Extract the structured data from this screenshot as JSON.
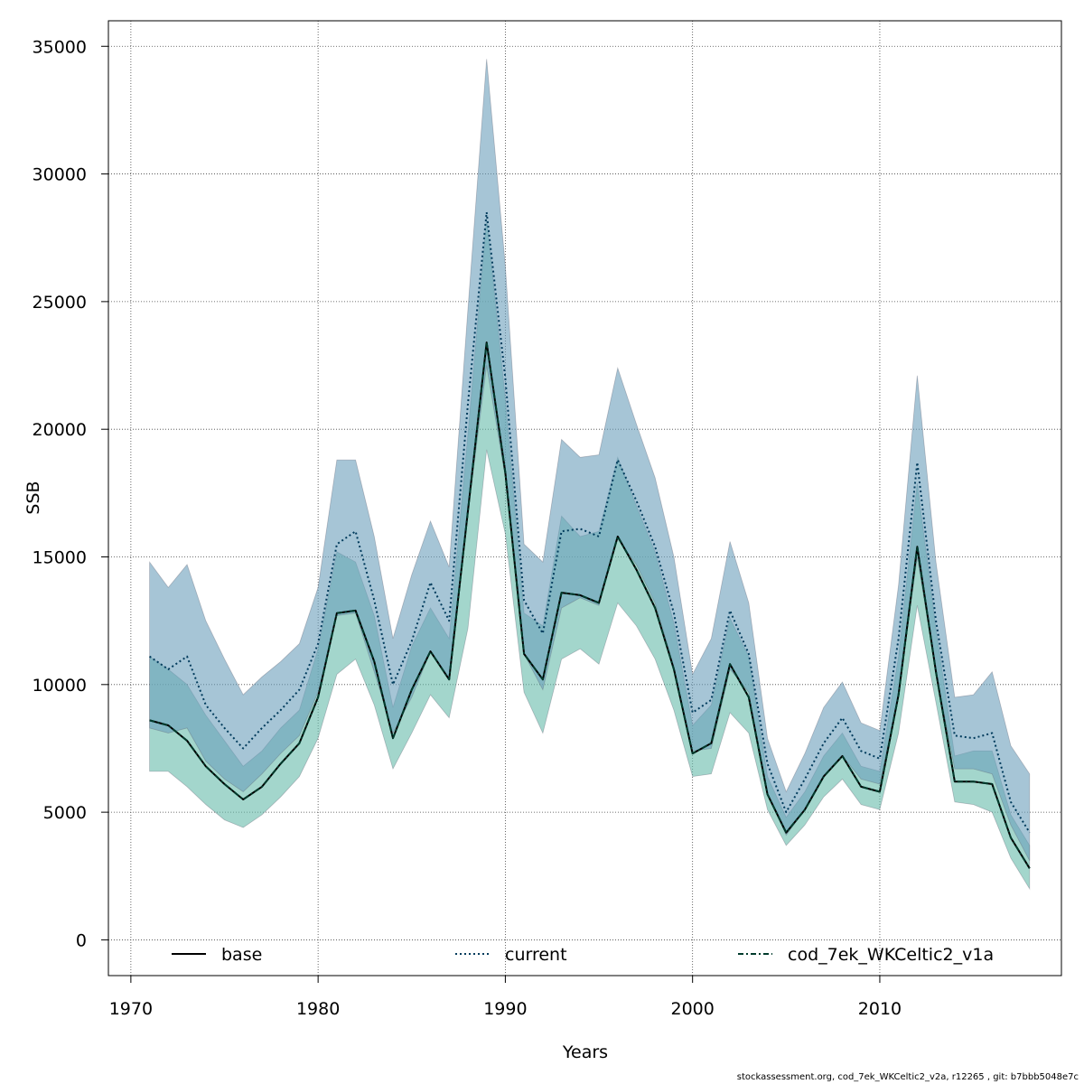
{
  "chart_data": {
    "type": "area",
    "xlabel": "Years",
    "ylabel": "SSB",
    "xlim": [
      1968.8,
      2019.7
    ],
    "ylim": [
      -1400,
      36000
    ],
    "x_ticks": [
      1970,
      1980,
      1990,
      2000,
      2010
    ],
    "y_ticks": [
      0,
      5000,
      10000,
      15000,
      20000,
      25000,
      30000,
      35000
    ],
    "grid": true,
    "legend_position": "bottom",
    "years": [
      1971,
      1972,
      1973,
      1974,
      1975,
      1976,
      1977,
      1978,
      1979,
      1980,
      1981,
      1982,
      1983,
      1984,
      1985,
      1986,
      1987,
      1988,
      1989,
      1990,
      1991,
      1992,
      1993,
      1994,
      1995,
      1996,
      1997,
      1998,
      1999,
      2000,
      2001,
      2002,
      2003,
      2004,
      2005,
      2006,
      2007,
      2008,
      2009,
      2010,
      2011,
      2012,
      2013,
      2014,
      2015,
      2016,
      2017,
      2018
    ],
    "series": [
      {
        "name": "base",
        "color": "#000000",
        "dash": "solid",
        "values": [
          8600,
          8400,
          7800,
          6800,
          6100,
          5500,
          6000,
          6900,
          7700,
          9500,
          12800,
          12900,
          10900,
          7900,
          9800,
          11300,
          10200,
          16800,
          23400,
          18300,
          11200,
          10200,
          13600,
          13500,
          13200,
          15800,
          14500,
          13000,
          10600,
          7300,
          7700,
          10800,
          9500,
          5700,
          4200,
          5100,
          6400,
          7200,
          6000,
          5800,
          9600,
          15400,
          10500,
          6200,
          6200,
          6100,
          4000,
          2800
        ],
        "band_lower": [
          6600,
          6600,
          6000,
          5300,
          4700,
          4400,
          4900,
          5600,
          6400,
          7900,
          10400,
          11000,
          9200,
          6700,
          8100,
          9600,
          8700,
          12200,
          19200,
          15900,
          9700,
          8100,
          11000,
          11400,
          10800,
          13200,
          12300,
          11000,
          9000,
          6400,
          6500,
          8900,
          8100,
          5100,
          3700,
          4500,
          5600,
          6300,
          5300,
          5100,
          8100,
          13100,
          9300,
          5400,
          5300,
          5000,
          3200,
          2000
        ],
        "band_upper": [
          11100,
          10600,
          10000,
          8800,
          7800,
          6800,
          7400,
          8300,
          9000,
          11400,
          15200,
          14800,
          12700,
          9100,
          11500,
          13000,
          11800,
          19800,
          28300,
          21200,
          12800,
          12300,
          16600,
          15800,
          16000,
          18900,
          17000,
          15200,
          12400,
          8400,
          9200,
          12600,
          11100,
          6400,
          4800,
          5800,
          7200,
          8100,
          6800,
          6600,
          11100,
          17900,
          12200,
          7200,
          7400,
          7400,
          4900,
          3700
        ],
        "band_color": "#66bbaa",
        "band_opacity": 0.6
      },
      {
        "name": "current",
        "color": "#003b5c",
        "dash": "dotted",
        "values": [
          11100,
          10600,
          11100,
          9200,
          8300,
          7500,
          8300,
          9000,
          9800,
          11600,
          15500,
          16000,
          13300,
          10000,
          11700,
          14000,
          12500,
          21000,
          28500,
          22000,
          13300,
          12000,
          16000,
          16100,
          15800,
          18800,
          17200,
          15400,
          12800,
          8900,
          9400,
          12900,
          11200,
          6900,
          5000,
          6300,
          7700,
          8700,
          7400,
          7100,
          11800,
          18700,
          12500,
          8000,
          7900,
          8100,
          5400,
          4200
        ],
        "band_lower": [
          8300,
          8100,
          8300,
          7000,
          6300,
          5800,
          6500,
          7300,
          8000,
          9700,
          12700,
          12800,
          10500,
          8100,
          9500,
          11300,
          10200,
          16700,
          22500,
          18100,
          11200,
          9800,
          13000,
          13400,
          13100,
          15700,
          14700,
          13200,
          10700,
          7400,
          7500,
          10600,
          9700,
          5700,
          4100,
          5100,
          6400,
          7200,
          6300,
          6100,
          9600,
          15000,
          10500,
          6700,
          6700,
          6500,
          4500,
          3100
        ],
        "band_upper": [
          14800,
          13800,
          14700,
          12500,
          11000,
          9600,
          10300,
          10900,
          11600,
          13800,
          18800,
          18800,
          15800,
          11800,
          14300,
          16400,
          14600,
          24700,
          34500,
          26400,
          15500,
          14800,
          19600,
          18900,
          19000,
          22400,
          20200,
          18100,
          15000,
          10400,
          11800,
          15600,
          13200,
          7900,
          5800,
          7300,
          9100,
          10100,
          8500,
          8200,
          13900,
          22100,
          14800,
          9500,
          9600,
          10500,
          7600,
          6500
        ],
        "band_color": "#6a9fbb",
        "band_opacity": 0.6
      },
      {
        "name": "cod_7ek_WKCeltic2_v1a",
        "color": "#003b2c",
        "dash": "dashed-dotted",
        "values": [
          8600,
          8400,
          7800,
          6800,
          6100,
          5500,
          6000,
          6900,
          7700,
          9500,
          12800,
          12900,
          10900,
          7900,
          9800,
          11300,
          10200,
          16800,
          23400,
          18300,
          11200,
          10200,
          13600,
          13500,
          13200,
          15800,
          14500,
          13000,
          10600,
          7300,
          7700,
          10800,
          9500,
          5700,
          4200,
          5100,
          6400,
          7200,
          6000,
          5800,
          9600,
          15400,
          10500,
          6200,
          6200,
          6100,
          4000,
          2800
        ]
      }
    ]
  },
  "footer": {
    "note": "stockassessment.org, cod_7ek_WKCeltic2_v2a, r12265 , git: b7bbb5048e7c"
  }
}
